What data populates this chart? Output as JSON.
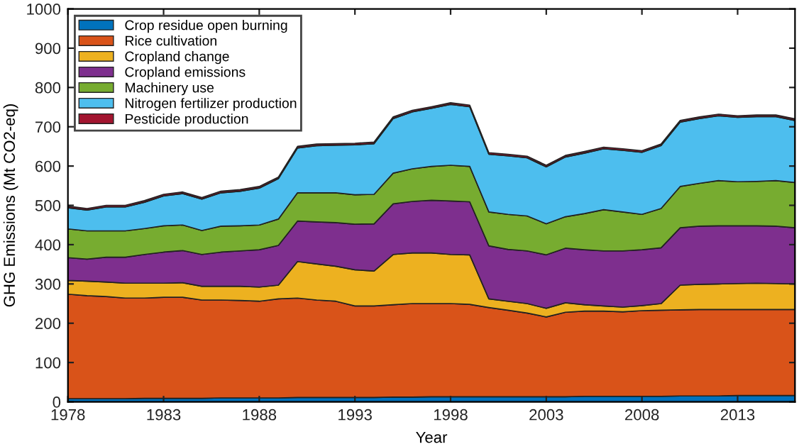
{
  "chart_data": {
    "type": "area",
    "stacked": true,
    "xlabel": "Year",
    "ylabel": "GHG Emissions (Mt CO2-eq)",
    "x": [
      1978,
      1979,
      1980,
      1981,
      1982,
      1983,
      1984,
      1985,
      1986,
      1987,
      1988,
      1989,
      1990,
      1991,
      1992,
      1993,
      1994,
      1995,
      1996,
      1997,
      1998,
      1999,
      2000,
      2001,
      2002,
      2003,
      2004,
      2005,
      2006,
      2007,
      2008,
      2009,
      2010,
      2011,
      2012,
      2013,
      2014,
      2015,
      2016
    ],
    "series": [
      {
        "name": "Crop residue open burning",
        "color": "#0072bd",
        "values": [
          8,
          8,
          8,
          8,
          9,
          9,
          9,
          9,
          10,
          10,
          10,
          10,
          11,
          11,
          11,
          11,
          11,
          12,
          12,
          13,
          13,
          13,
          13,
          13,
          13,
          13,
          13,
          14,
          14,
          14,
          14,
          14,
          15,
          15,
          15,
          16,
          16,
          16,
          16
        ]
      },
      {
        "name": "Rice cultivation",
        "color": "#d95319",
        "values": [
          266,
          262,
          260,
          256,
          255,
          257,
          257,
          250,
          249,
          248,
          246,
          252,
          253,
          248,
          245,
          233,
          233,
          235,
          238,
          237,
          237,
          235,
          227,
          220,
          213,
          203,
          215,
          217,
          217,
          215,
          218,
          219,
          219,
          220,
          220,
          219,
          219,
          219,
          219
        ]
      },
      {
        "name": "Cropland change",
        "color": "#edb120",
        "values": [
          35,
          37,
          37,
          38,
          38,
          36,
          37,
          35,
          35,
          36,
          36,
          35,
          93,
          92,
          89,
          92,
          89,
          128,
          129,
          129,
          125,
          126,
          22,
          23,
          24,
          22,
          24,
          16,
          13,
          12,
          13,
          17,
          63,
          64,
          65,
          66,
          67,
          66,
          65
        ]
      },
      {
        "name": "Cropland emissions",
        "color": "#7e2f8e",
        "values": [
          58,
          56,
          63,
          66,
          73,
          79,
          82,
          81,
          87,
          90,
          95,
          101,
          103,
          107,
          111,
          116,
          120,
          129,
          131,
          134,
          136,
          135,
          135,
          132,
          134,
          136,
          139,
          140,
          140,
          143,
          142,
          142,
          146,
          148,
          148,
          147,
          146,
          146,
          143
        ]
      },
      {
        "name": "Machinery use",
        "color": "#77ac30",
        "values": [
          73,
          72,
          67,
          67,
          66,
          67,
          65,
          61,
          66,
          64,
          63,
          67,
          72,
          74,
          76,
          75,
          75,
          78,
          83,
          86,
          91,
          90,
          86,
          89,
          89,
          79,
          80,
          92,
          105,
          99,
          90,
          100,
          105,
          109,
          115,
          112,
          113,
          116,
          115
        ]
      },
      {
        "name": "Nitrogen fertilizer production",
        "color": "#4dbeee",
        "values": [
          54,
          53,
          61,
          61,
          67,
          76,
          80,
          80,
          85,
          88,
          94,
          103,
          114,
          120,
          121,
          127,
          129,
          139,
          145,
          148,
          155,
          152,
          147,
          149,
          148,
          145,
          152,
          154,
          155,
          157,
          158,
          160,
          164,
          165,
          165,
          164,
          165,
          163,
          158
        ]
      },
      {
        "name": "Pesticide production",
        "color": "#a2142f",
        "values": [
          4,
          4,
          4,
          4,
          4,
          4,
          4,
          4,
          4,
          4,
          4,
          4,
          4,
          4,
          4,
          4,
          4,
          4,
          4,
          4,
          4,
          4,
          4,
          4,
          4,
          4,
          4,
          4,
          4,
          4,
          4,
          4,
          4,
          4,
          4,
          4,
          4,
          4,
          4
        ]
      }
    ],
    "xlim": [
      1978,
      2016
    ],
    "xticks": [
      1978,
      1983,
      1988,
      1993,
      1998,
      2003,
      2008,
      2013
    ],
    "ylim": [
      0,
      1000
    ],
    "yticks": [
      0,
      100,
      200,
      300,
      400,
      500,
      600,
      700,
      800,
      900,
      1000
    ],
    "legend": "top left",
    "grid": false
  }
}
